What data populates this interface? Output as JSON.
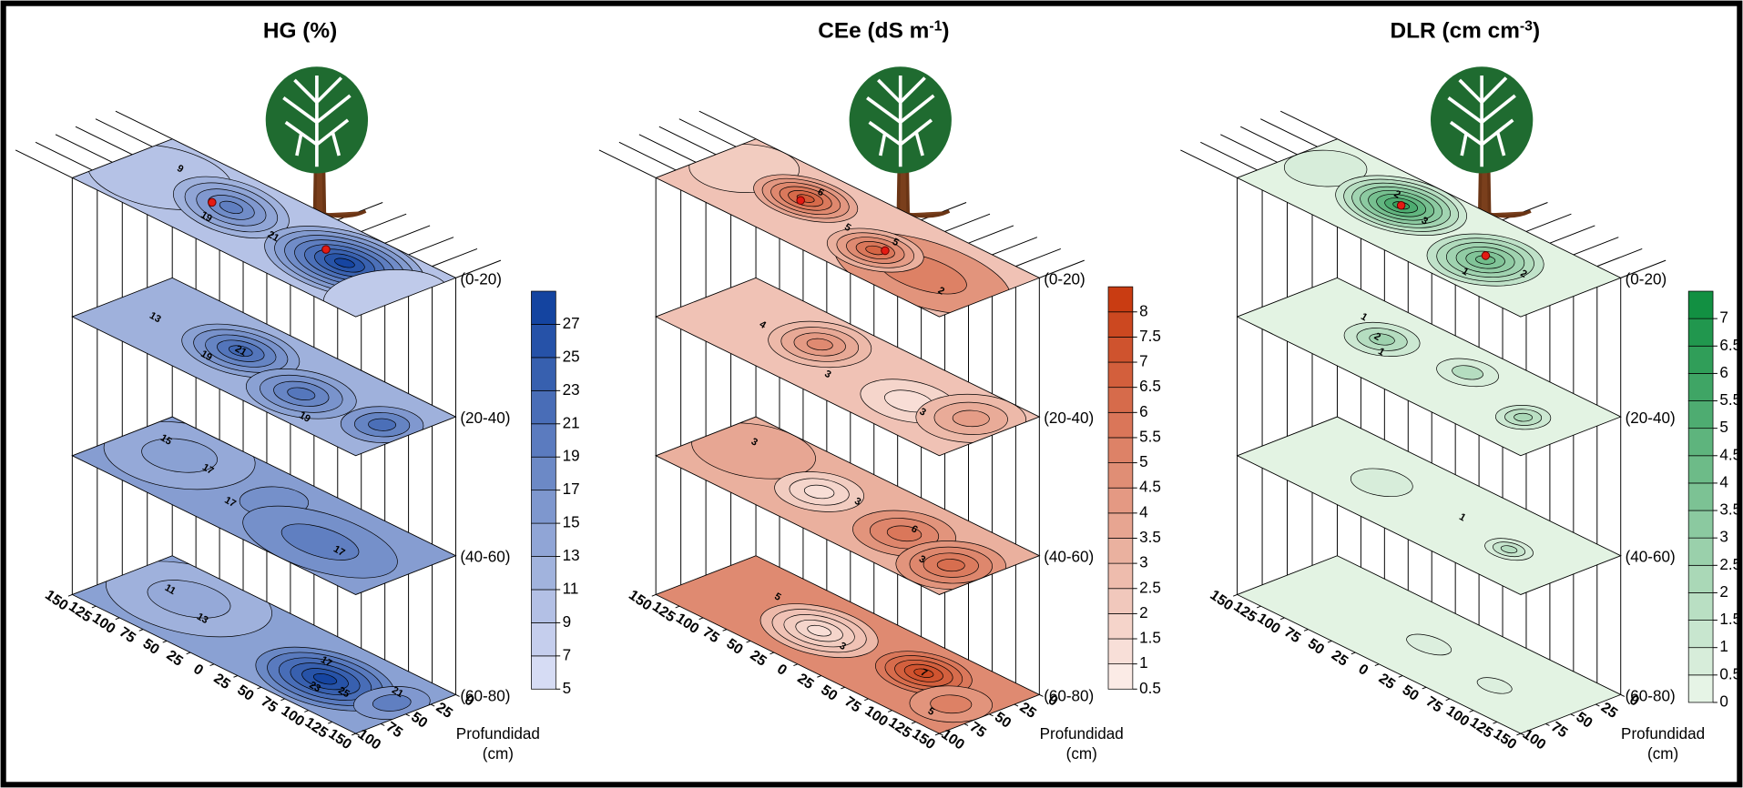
{
  "chart_data": [
    {
      "type": "contour3d",
      "title": [
        "HG (%)"
      ],
      "colormap": [
        "#dfe3f8",
        "#0b3d9c"
      ],
      "clim": [
        5,
        29
      ],
      "cticks": [
        5,
        7,
        9,
        11,
        13,
        15,
        17,
        19,
        21,
        23,
        25,
        27
      ],
      "layers": [
        "(0-20)",
        "(20-40)",
        "(40-60)",
        "(60-80)"
      ],
      "xlim": [
        -150,
        150
      ],
      "xticks": [
        {
          "value": -150,
          "label": "150"
        },
        {
          "value": -125,
          "label": "125"
        },
        {
          "value": -100,
          "label": "100"
        },
        {
          "value": -75,
          "label": "75"
        },
        {
          "value": -50,
          "label": "50"
        },
        {
          "value": -25,
          "label": "25"
        },
        0,
        25,
        50,
        75,
        100,
        125,
        150
      ],
      "ylim": [
        0,
        100
      ],
      "yticks": [
        0,
        25,
        50,
        75,
        100
      ],
      "z_label": [
        "Profundidad",
        "(cm)"
      ],
      "contour_labels": [
        [
          "9",
          "19",
          "21"
        ],
        [
          "13",
          "19",
          "21",
          "19"
        ],
        [
          "15",
          "17",
          "17",
          "17"
        ],
        [
          "11",
          "13",
          "17",
          "23",
          "25",
          "21"
        ]
      ]
    },
    {
      "type": "contour3d",
      "title": [
        "CEe (dS m",
        "-1",
        ")"
      ],
      "colormap": [
        "#fdf1ed",
        "#c7360b"
      ],
      "clim": [
        0.5,
        8.5
      ],
      "cticks": [
        0.5,
        1,
        1.5,
        2,
        2.5,
        3,
        3.5,
        4,
        4.5,
        5,
        5.5,
        6,
        6.5,
        7,
        7.5,
        8
      ],
      "layers": [
        "(0-20)",
        "(20-40)",
        "(40-60)",
        "(60-80)"
      ],
      "xlim": [
        -150,
        150
      ],
      "xticks": [
        {
          "value": -150,
          "label": "150"
        },
        {
          "value": -125,
          "label": "125"
        },
        {
          "value": -100,
          "label": "100"
        },
        {
          "value": -75,
          "label": "75"
        },
        {
          "value": -50,
          "label": "50"
        },
        {
          "value": -25,
          "label": "25"
        },
        0,
        25,
        50,
        75,
        100,
        125,
        150
      ],
      "ylim": [
        0,
        100
      ],
      "yticks": [
        0,
        25,
        50,
        75,
        100
      ],
      "z_label": [
        "Profundidad",
        "(cm)"
      ],
      "contour_labels": [
        [
          "6",
          "5",
          "5",
          "2"
        ],
        [
          "4",
          "3",
          "3"
        ],
        [
          "3",
          "3",
          "6",
          "3"
        ],
        [
          "5",
          "3",
          "7",
          "5"
        ]
      ]
    },
    {
      "type": "contour3d",
      "title": [
        "DLR (cm cm",
        "-3",
        ")"
      ],
      "colormap": [
        "#eef8ec",
        "#0a8c3c"
      ],
      "clim": [
        0,
        7.5
      ],
      "cticks": [
        0,
        0.5,
        1,
        1.5,
        2,
        2.5,
        3,
        3.5,
        4,
        4.5,
        5,
        5.5,
        6,
        6.5,
        7
      ],
      "layers": [
        "(0-20)",
        "(20-40)",
        "(40-60)",
        "(60-80)"
      ],
      "xlim": [
        -150,
        150
      ],
      "xticks": [
        {
          "value": -150,
          "label": "150"
        },
        {
          "value": -125,
          "label": "125"
        },
        {
          "value": -100,
          "label": "100"
        },
        {
          "value": -75,
          "label": "75"
        },
        {
          "value": -50,
          "label": "50"
        },
        {
          "value": -25,
          "label": "25"
        },
        0,
        25,
        50,
        75,
        100,
        125,
        150
      ],
      "ylim": [
        0,
        100
      ],
      "yticks": [
        0,
        25,
        50,
        75,
        100
      ],
      "z_label": [
        "Profundidad",
        "(cm)"
      ],
      "contour_labels": [
        [
          "2",
          "3",
          "1",
          "2"
        ],
        [
          "1",
          "2",
          "1"
        ],
        [
          "1"
        ],
        []
      ]
    }
  ]
}
